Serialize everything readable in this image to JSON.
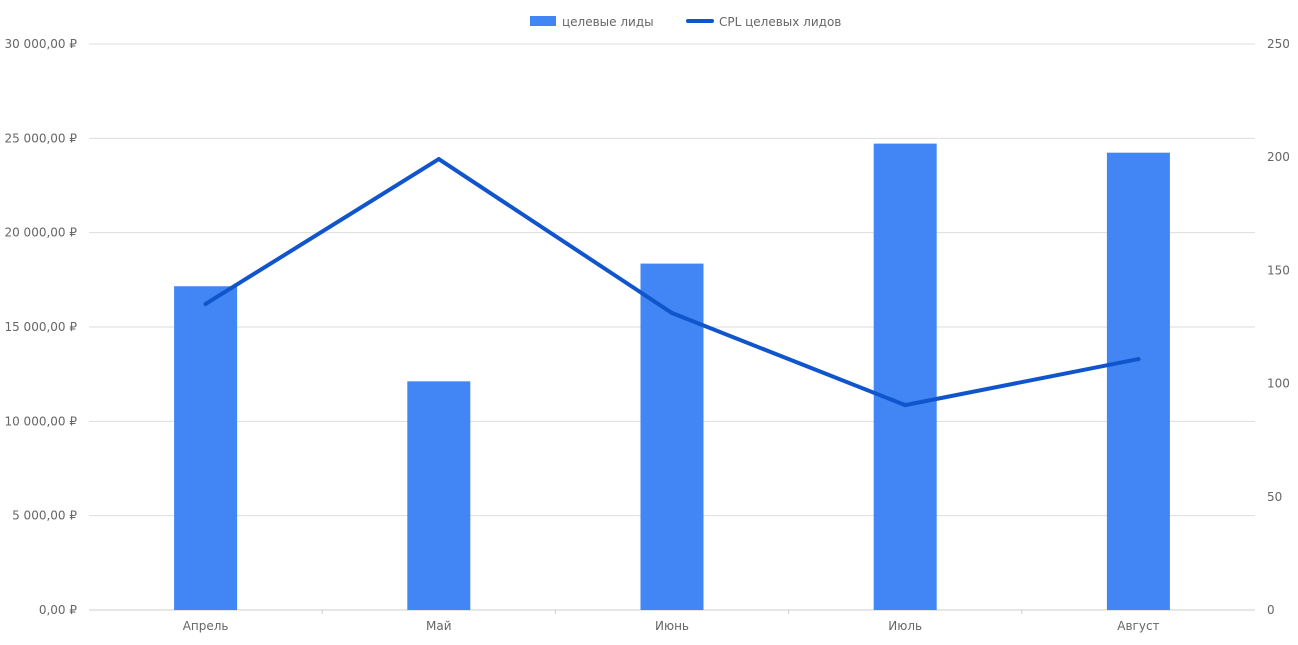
{
  "chart_data": {
    "type": "bar+line",
    "categories": [
      "Апрель",
      "Май",
      "Июнь",
      "Июль",
      "Август"
    ],
    "series": [
      {
        "name": "целевые лиды",
        "type": "bar",
        "axis": "right",
        "color": "#4285f4",
        "values": [
          143,
          101,
          153,
          206,
          202
        ]
      },
      {
        "name": "CPL целевых лидов",
        "type": "line",
        "axis": "left",
        "color": "#1155cc",
        "values": [
          16220,
          23900,
          15740,
          10860,
          13300
        ]
      }
    ],
    "left_axis": {
      "ylim": [
        0,
        30000
      ],
      "ticks": [
        "0,00 ₽",
        "5 000,00 ₽",
        "10 000,00 ₽",
        "15 000,00 ₽",
        "20 000,00 ₽",
        "25 000,00 ₽",
        "30 000,00 ₽"
      ]
    },
    "right_axis": {
      "ylim": [
        0,
        250
      ],
      "ticks": [
        "0",
        "50",
        "100",
        "150",
        "200",
        "250"
      ]
    },
    "grid": true,
    "legend_position": "top"
  }
}
